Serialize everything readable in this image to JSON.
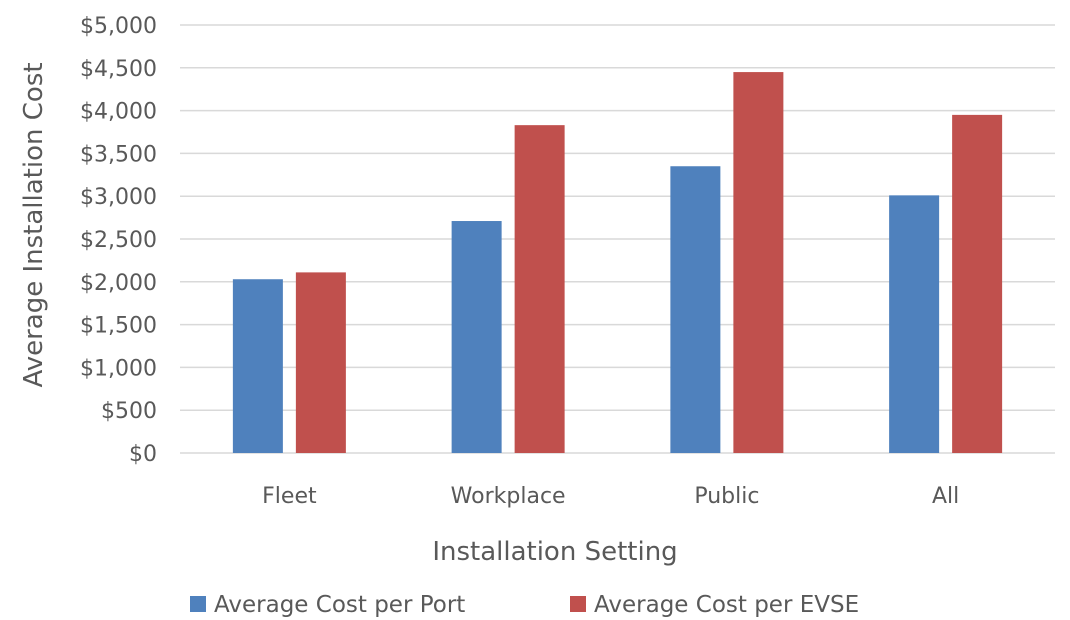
{
  "chart_data": {
    "type": "bar",
    "title": "",
    "xlabel": "Installation Setting",
    "ylabel": "Average Installation Cost",
    "categories": [
      "Fleet",
      "Workplace",
      "Public",
      "All"
    ],
    "series": [
      {
        "name": "Average Cost per Port",
        "values": [
          2030,
          2710,
          3350,
          3010
        ]
      },
      {
        "name": "Average Cost per EVSE",
        "values": [
          2110,
          3830,
          4450,
          3950
        ]
      }
    ],
    "ylim": [
      0,
      5000
    ],
    "yticks": [
      "$0",
      "$500",
      "$1,000",
      "$1,500",
      "$2,000",
      "$2,500",
      "$3,000",
      "$3,500",
      "$4,000",
      "$4,500",
      "$5,000"
    ],
    "grid": true,
    "legend": "bottom"
  },
  "colors": {
    "Average Cost per Port": "#4f81bd",
    "Average Cost per EVSE": "#c0504d"
  }
}
